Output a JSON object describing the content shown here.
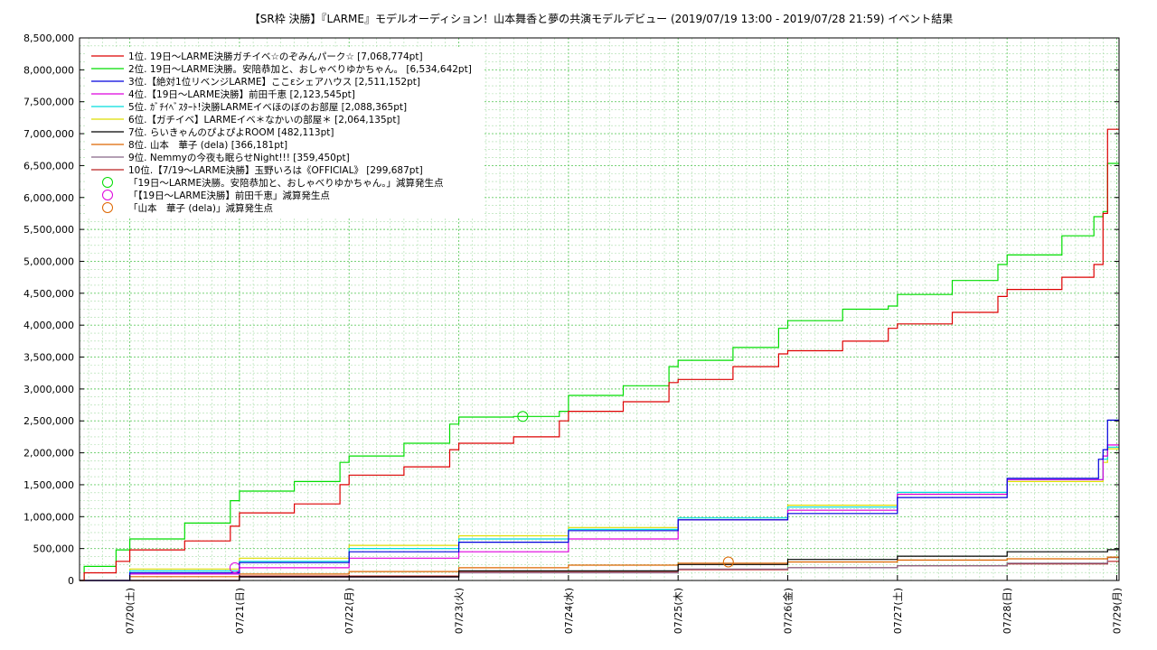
{
  "chart_data": {
    "type": "line",
    "title": "【SR枠 決勝】『LARME』モデルオーディション！山本舞香と夢の共演モデルデビュー (2019/07/19 13:00 - 2019/07/28 21:59)          イベント結果",
    "xlabel": "",
    "ylabel": "",
    "x_range": [
      "2019-07-19 13:00",
      "2019-07-29 00:30"
    ],
    "ylim": [
      0,
      8500000
    ],
    "y_ticks": [
      "0",
      "500,000",
      "1,000,000",
      "1,500,000",
      "2,000,000",
      "2,500,000",
      "3,000,000",
      "3,500,000",
      "4,000,000",
      "4,500,000",
      "5,000,000",
      "5,500,000",
      "6,000,000",
      "6,500,000",
      "7,000,000",
      "7,500,000",
      "8,000,000",
      "8,500,000"
    ],
    "x_ticks": [
      {
        "date": "2019-07-20",
        "label": "07/20(土)"
      },
      {
        "date": "2019-07-21",
        "label": "07/21(日)"
      },
      {
        "date": "2019-07-22",
        "label": "07/22(月)"
      },
      {
        "date": "2019-07-23",
        "label": "07/23(火)"
      },
      {
        "date": "2019-07-24",
        "label": "07/24(水)"
      },
      {
        "date": "2019-07-25",
        "label": "07/25(木)"
      },
      {
        "date": "2019-07-26",
        "label": "07/26(金)"
      },
      {
        "date": "2019-07-27",
        "label": "07/27(土)"
      },
      {
        "date": "2019-07-28",
        "label": "07/28(日)"
      },
      {
        "date": "2019-07-29",
        "label": "07/29(月)"
      }
    ],
    "grid": true,
    "legend_position": "top-left",
    "series": [
      {
        "name": "1位. 19日～LARME決勝ガチイベ☆のぞみんパーク☆ [7,068,774pt]",
        "color": "#dd0000",
        "points": [
          [
            "2019-07-19 13:00",
            0
          ],
          [
            "2019-07-19 14:00",
            120000
          ],
          [
            "2019-07-19 21:00",
            300000
          ],
          [
            "2019-07-20 00:00",
            480000
          ],
          [
            "2019-07-20 12:00",
            620000
          ],
          [
            "2019-07-20 22:00",
            850000
          ],
          [
            "2019-07-21 00:00",
            1060000
          ],
          [
            "2019-07-21 12:00",
            1200000
          ],
          [
            "2019-07-21 22:00",
            1500000
          ],
          [
            "2019-07-22 00:00",
            1650000
          ],
          [
            "2019-07-22 12:00",
            1780000
          ],
          [
            "2019-07-22 22:00",
            2050000
          ],
          [
            "2019-07-23 00:00",
            2150000
          ],
          [
            "2019-07-23 12:00",
            2250000
          ],
          [
            "2019-07-23 22:00",
            2500000
          ],
          [
            "2019-07-24 00:00",
            2650000
          ],
          [
            "2019-07-24 12:00",
            2800000
          ],
          [
            "2019-07-24 22:00",
            3100000
          ],
          [
            "2019-07-25 00:00",
            3150000
          ],
          [
            "2019-07-25 12:00",
            3350000
          ],
          [
            "2019-07-25 22:00",
            3550000
          ],
          [
            "2019-07-26 00:00",
            3600000
          ],
          [
            "2019-07-26 12:00",
            3750000
          ],
          [
            "2019-07-26 22:00",
            3950000
          ],
          [
            "2019-07-27 00:00",
            4020000
          ],
          [
            "2019-07-27 12:00",
            4200000
          ],
          [
            "2019-07-27 22:00",
            4450000
          ],
          [
            "2019-07-28 00:00",
            4560000
          ],
          [
            "2019-07-28 12:00",
            4750000
          ],
          [
            "2019-07-28 19:00",
            4950000
          ],
          [
            "2019-07-28 21:00",
            5750000
          ],
          [
            "2019-07-28 21:59",
            7068774
          ],
          [
            "2019-07-29 00:30",
            7068774
          ]
        ]
      },
      {
        "name": "2位. 19日～LARME決勝。安陪恭加と、おしゃべりゆかちゃん。 [6,534,642pt]",
        "color": "#00dd00",
        "points": [
          [
            "2019-07-19 13:00",
            0
          ],
          [
            "2019-07-19 14:00",
            220000
          ],
          [
            "2019-07-19 21:00",
            480000
          ],
          [
            "2019-07-20 00:00",
            650000
          ],
          [
            "2019-07-20 12:00",
            900000
          ],
          [
            "2019-07-20 22:00",
            1250000
          ],
          [
            "2019-07-21 00:00",
            1400000
          ],
          [
            "2019-07-21 12:00",
            1550000
          ],
          [
            "2019-07-21 22:00",
            1850000
          ],
          [
            "2019-07-22 00:00",
            1950000
          ],
          [
            "2019-07-22 12:00",
            2150000
          ],
          [
            "2019-07-22 22:00",
            2450000
          ],
          [
            "2019-07-23 00:00",
            2560000
          ],
          [
            "2019-07-23 12:00",
            2570000
          ],
          [
            "2019-07-23 22:00",
            2650000
          ],
          [
            "2019-07-24 00:00",
            2900000
          ],
          [
            "2019-07-24 12:00",
            3050000
          ],
          [
            "2019-07-24 22:00",
            3350000
          ],
          [
            "2019-07-25 00:00",
            3450000
          ],
          [
            "2019-07-25 12:00",
            3650000
          ],
          [
            "2019-07-25 22:00",
            3950000
          ],
          [
            "2019-07-26 00:00",
            4070000
          ],
          [
            "2019-07-26 12:00",
            4250000
          ],
          [
            "2019-07-26 22:00",
            4300000
          ],
          [
            "2019-07-27 00:00",
            4480000
          ],
          [
            "2019-07-27 12:00",
            4700000
          ],
          [
            "2019-07-27 22:00",
            4950000
          ],
          [
            "2019-07-28 00:00",
            5100000
          ],
          [
            "2019-07-28 12:00",
            5400000
          ],
          [
            "2019-07-28 19:00",
            5700000
          ],
          [
            "2019-07-28 21:00",
            5780000
          ],
          [
            "2019-07-28 21:59",
            6534642
          ],
          [
            "2019-07-29 00:30",
            6534642
          ]
        ]
      },
      {
        "name": "3位.【絶対1位リベンジLARME】ここεシェアハウス [2,511,152pt]",
        "color": "#0000dd",
        "points": [
          [
            "2019-07-19 13:00",
            0
          ],
          [
            "2019-07-20 00:00",
            120000
          ],
          [
            "2019-07-21 00:00",
            280000
          ],
          [
            "2019-07-22 00:00",
            450000
          ],
          [
            "2019-07-23 00:00",
            600000
          ],
          [
            "2019-07-24 00:00",
            780000
          ],
          [
            "2019-07-25 00:00",
            950000
          ],
          [
            "2019-07-26 00:00",
            1050000
          ],
          [
            "2019-07-27 00:00",
            1300000
          ],
          [
            "2019-07-28 00:00",
            1600000
          ],
          [
            "2019-07-28 20:00",
            1900000
          ],
          [
            "2019-07-28 21:00",
            2050000
          ],
          [
            "2019-07-28 21:59",
            2511152
          ],
          [
            "2019-07-29 00:30",
            2511152
          ]
        ]
      },
      {
        "name": "4位.【19日～LARME決勝】前田千恵 [2,123,545pt]",
        "color": "#dd00dd",
        "points": [
          [
            "2019-07-19 13:00",
            0
          ],
          [
            "2019-07-20 00:00",
            100000
          ],
          [
            "2019-07-21 00:00",
            200000
          ],
          [
            "2019-07-22 00:00",
            350000
          ],
          [
            "2019-07-23 00:00",
            450000
          ],
          [
            "2019-07-24 00:00",
            650000
          ],
          [
            "2019-07-25 00:00",
            950000
          ],
          [
            "2019-07-26 00:00",
            1100000
          ],
          [
            "2019-07-27 00:00",
            1350000
          ],
          [
            "2019-07-28 00:00",
            1580000
          ],
          [
            "2019-07-28 21:00",
            1950000
          ],
          [
            "2019-07-28 21:59",
            2123545
          ],
          [
            "2019-07-29 00:30",
            2123545
          ]
        ]
      },
      {
        "name": "5位. ｶﾞﾁｲﾍﾞｽﾀｰﾄ!決勝LARMEイベほのぼのお部屋 [2,088,365pt]",
        "color": "#00dddd",
        "points": [
          [
            "2019-07-19 13:00",
            0
          ],
          [
            "2019-07-20 00:00",
            150000
          ],
          [
            "2019-07-21 00:00",
            300000
          ],
          [
            "2019-07-22 00:00",
            500000
          ],
          [
            "2019-07-23 00:00",
            650000
          ],
          [
            "2019-07-24 00:00",
            800000
          ],
          [
            "2019-07-25 00:00",
            980000
          ],
          [
            "2019-07-26 00:00",
            1150000
          ],
          [
            "2019-07-27 00:00",
            1380000
          ],
          [
            "2019-07-28 00:00",
            1580000
          ],
          [
            "2019-07-28 21:00",
            1900000
          ],
          [
            "2019-07-28 21:59",
            2088365
          ],
          [
            "2019-07-29 00:30",
            2088365
          ]
        ]
      },
      {
        "name": "6位.【ガチイベ】LARMEイベ＊なかいの部屋＊ [2,064,135pt]",
        "color": "#dddd00",
        "points": [
          [
            "2019-07-19 13:00",
            0
          ],
          [
            "2019-07-20 00:00",
            180000
          ],
          [
            "2019-07-21 00:00",
            350000
          ],
          [
            "2019-07-22 00:00",
            550000
          ],
          [
            "2019-07-23 00:00",
            700000
          ],
          [
            "2019-07-24 00:00",
            830000
          ],
          [
            "2019-07-25 00:00",
            950000
          ],
          [
            "2019-07-26 00:00",
            1180000
          ],
          [
            "2019-07-27 00:00",
            1350000
          ],
          [
            "2019-07-28 00:00",
            1550000
          ],
          [
            "2019-07-28 21:00",
            1850000
          ],
          [
            "2019-07-28 21:59",
            2064135
          ],
          [
            "2019-07-29 00:30",
            2064135
          ]
        ]
      },
      {
        "name": "7位. らいきゃんのぴよぴよROOM [482,113pt]",
        "color": "#000000",
        "points": [
          [
            "2019-07-19 13:00",
            0
          ],
          [
            "2019-07-21 00:00",
            60000
          ],
          [
            "2019-07-23 00:00",
            150000
          ],
          [
            "2019-07-25 00:00",
            250000
          ],
          [
            "2019-07-26 00:00",
            330000
          ],
          [
            "2019-07-27 00:00",
            380000
          ],
          [
            "2019-07-28 00:00",
            450000
          ],
          [
            "2019-07-28 21:59",
            482113
          ],
          [
            "2019-07-29 00:30",
            482113
          ]
        ]
      },
      {
        "name": "8位. 山本　華子 (dela) [366,181pt]",
        "color": "#dd6600",
        "points": [
          [
            "2019-07-19 13:00",
            0
          ],
          [
            "2019-07-20 00:00",
            60000
          ],
          [
            "2019-07-21 00:00",
            100000
          ],
          [
            "2019-07-22 00:00",
            140000
          ],
          [
            "2019-07-23 00:00",
            200000
          ],
          [
            "2019-07-24 00:00",
            240000
          ],
          [
            "2019-07-25 00:00",
            270000
          ],
          [
            "2019-07-26 00:00",
            290000
          ],
          [
            "2019-07-27 00:00",
            320000
          ],
          [
            "2019-07-28 00:00",
            340000
          ],
          [
            "2019-07-28 21:59",
            366181
          ],
          [
            "2019-07-29 00:30",
            366181
          ]
        ]
      },
      {
        "name": "9位. Nemmyの今夜も眠らせNight!!! [359,450pt]",
        "color": "#886688",
        "points": [
          [
            "2019-07-19 13:00",
            0
          ],
          [
            "2019-07-21 00:00",
            50000
          ],
          [
            "2019-07-23 00:00",
            120000
          ],
          [
            "2019-07-25 00:00",
            180000
          ],
          [
            "2019-07-26 00:00",
            200000
          ],
          [
            "2019-07-27 00:00",
            230000
          ],
          [
            "2019-07-28 00:00",
            270000
          ],
          [
            "2019-07-28 21:59",
            359450
          ],
          [
            "2019-07-29 00:30",
            359450
          ]
        ]
      },
      {
        "name": "10位.【7/19～LARME決勝】玉野いろは《OFFICIAL》 [299,687pt]",
        "color": "#bb2222",
        "points": [
          [
            "2019-07-19 13:00",
            0
          ],
          [
            "2019-07-21 00:00",
            70000
          ],
          [
            "2019-07-23 00:00",
            130000
          ],
          [
            "2019-07-25 00:00",
            170000
          ],
          [
            "2019-07-26 00:00",
            200000
          ],
          [
            "2019-07-27 00:00",
            230000
          ],
          [
            "2019-07-28 00:00",
            260000
          ],
          [
            "2019-07-28 21:59",
            299687
          ],
          [
            "2019-07-29 00:30",
            299687
          ]
        ]
      }
    ],
    "markers": [
      {
        "label": "「19日～LARME決勝。安陪恭加と、おしゃべりゆかちゃん。」減算発生点",
        "color": "#00dd00",
        "x": "2019-07-23 14:00",
        "y": 2570000
      },
      {
        "label": "「【19日～LARME決勝】前田千恵」減算発生点",
        "color": "#dd00dd",
        "x": "2019-07-20 23:00",
        "y": 200000
      },
      {
        "label": "「山本　華子 (dela)」減算発生点",
        "color": "#dd6600",
        "x": "2019-07-25 11:00",
        "y": 290000
      }
    ]
  }
}
